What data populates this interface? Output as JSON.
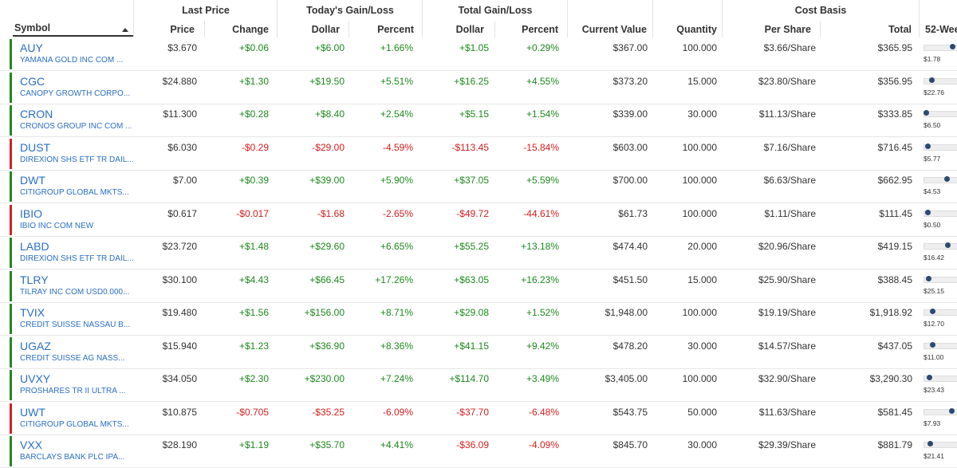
{
  "header": {
    "symbol": "Symbol",
    "groups": {
      "last_price": "Last Price",
      "todays_gain_loss": "Today's Gain/Loss",
      "total_gain_loss": "Total Gain/Loss",
      "cost_basis": "Cost Basis",
      "week52": "52-Wee"
    },
    "columns": {
      "price": "Price",
      "change": "Change",
      "today_dollar": "Dollar",
      "today_percent": "Percent",
      "total_dollar": "Dollar",
      "total_percent": "Percent",
      "current_value": "Current Value",
      "quantity": "Quantity",
      "per_share": "Per Share",
      "total": "Total"
    }
  },
  "colors": {
    "positive": "#1e8a1e",
    "negative": "#d62020",
    "link": "#2a6fc4"
  },
  "positions": [
    {
      "symbol": "AUY",
      "desc": "YAMANA GOLD INC COM ...",
      "trend": "up",
      "price": "$3.670",
      "change": "+$0.06",
      "today_dollar": "+$6.00",
      "today_percent": "+1.66%",
      "total_dollar": "+$1.05",
      "total_percent": "+0.29%",
      "current_value": "$367.00",
      "quantity": "100.000",
      "per_share": "$3.66/Share",
      "total": "$365.95",
      "week52_low": "$1.78",
      "range_pos": 0.95
    },
    {
      "symbol": "CGC",
      "desc": "CANOPY GROWTH CORPO...",
      "trend": "up",
      "price": "$24.880",
      "change": "+$1.30",
      "today_dollar": "+$19.50",
      "today_percent": "+5.51%",
      "total_dollar": "+$16.25",
      "total_percent": "+4.55%",
      "current_value": "$373.20",
      "quantity": "15.000",
      "per_share": "$23.80/Share",
      "total": "$356.95",
      "week52_low": "$22.76",
      "range_pos": 0.2
    },
    {
      "symbol": "CRON",
      "desc": "CRONOS GROUP INC COM ...",
      "trend": "up",
      "price": "$11.300",
      "change": "+$0.28",
      "today_dollar": "+$8.40",
      "today_percent": "+2.54%",
      "total_dollar": "+$5.15",
      "total_percent": "+1.54%",
      "current_value": "$339.00",
      "quantity": "30.000",
      "per_share": "$11.13/Share",
      "total": "$333.85",
      "week52_low": "$6.50",
      "range_pos": 0.0
    },
    {
      "symbol": "DUST",
      "desc": "DIREXION SHS ETF TR DAIL...",
      "trend": "down",
      "price": "$6.030",
      "change": "-$0.29",
      "today_dollar": "-$29.00",
      "today_percent": "-4.59%",
      "total_dollar": "-$113.45",
      "total_percent": "-15.84%",
      "current_value": "$603.00",
      "quantity": "100.000",
      "per_share": "$7.16/Share",
      "total": "$716.45",
      "week52_low": "$5.77",
      "range_pos": 0.05
    },
    {
      "symbol": "DWT",
      "desc": "CITIGROUP GLOBAL MKTS...",
      "trend": "up",
      "price": "$7.00",
      "change": "+$0.39",
      "today_dollar": "+$39.00",
      "today_percent": "+5.90%",
      "total_dollar": "+$37.05",
      "total_percent": "+5.59%",
      "current_value": "$700.00",
      "quantity": "100.000",
      "per_share": "$6.63/Share",
      "total": "$662.95",
      "week52_low": "$4.53",
      "range_pos": 0.75
    },
    {
      "symbol": "IBIO",
      "desc": "IBIO INC COM NEW",
      "trend": "down",
      "price": "$0.617",
      "change": "-$0.017",
      "today_dollar": "-$1.68",
      "today_percent": "-2.65%",
      "total_dollar": "-$49.72",
      "total_percent": "-44.61%",
      "current_value": "$61.73",
      "quantity": "100.000",
      "per_share": "$1.11/Share",
      "total": "$111.45",
      "week52_low": "$0.50",
      "range_pos": 0.05
    },
    {
      "symbol": "LABD",
      "desc": "DIREXION SHS ETF TR DAIL...",
      "trend": "up",
      "price": "$23.720",
      "change": "+$1.48",
      "today_dollar": "+$29.60",
      "today_percent": "+6.65%",
      "total_dollar": "+$55.25",
      "total_percent": "+13.18%",
      "current_value": "$474.40",
      "quantity": "20.000",
      "per_share": "$20.96/Share",
      "total": "$419.15",
      "week52_low": "$16.42",
      "range_pos": 0.78
    },
    {
      "symbol": "TLRY",
      "desc": "TILRAY INC COM USD0.000...",
      "trend": "up",
      "price": "$30.100",
      "change": "+$4.43",
      "today_dollar": "+$66.45",
      "today_percent": "+17.26%",
      "total_dollar": "+$63.05",
      "total_percent": "+16.23%",
      "current_value": "$451.50",
      "quantity": "15.000",
      "per_share": "$25.90/Share",
      "total": "$388.45",
      "week52_low": "$25.15",
      "range_pos": 0.08
    },
    {
      "symbol": "TVIX",
      "desc": "CREDIT SUISSE NASSAU B...",
      "trend": "up",
      "price": "$19.480",
      "change": "+$1.56",
      "today_dollar": "+$156.00",
      "today_percent": "+8.71%",
      "total_dollar": "+$29.08",
      "total_percent": "+1.52%",
      "current_value": "$1,948.00",
      "quantity": "100.000",
      "per_share": "$19.19/Share",
      "total": "$1,918.92",
      "week52_low": "$12.70",
      "range_pos": 0.22
    },
    {
      "symbol": "UGAZ",
      "desc": "CREDIT SUISSE AG NASS...",
      "trend": "up",
      "price": "$15.940",
      "change": "+$1.23",
      "today_dollar": "+$36.90",
      "today_percent": "+8.36%",
      "total_dollar": "+$41.15",
      "total_percent": "+9.42%",
      "current_value": "$478.20",
      "quantity": "30.000",
      "per_share": "$14.57/Share",
      "total": "$437.05",
      "week52_low": "$11.00",
      "range_pos": 0.22
    },
    {
      "symbol": "UVXY",
      "desc": "PROSHARES TR II ULTRA ...",
      "trend": "up",
      "price": "$34.050",
      "change": "+$2.30",
      "today_dollar": "+$230.00",
      "today_percent": "+7.24%",
      "total_dollar": "+$114.70",
      "total_percent": "+3.49%",
      "current_value": "$3,405.00",
      "quantity": "100.000",
      "per_share": "$32.90/Share",
      "total": "$3,290.30",
      "week52_low": "$23.43",
      "range_pos": 0.12
    },
    {
      "symbol": "UWT",
      "desc": "CITIGROUP GLOBAL MKTS...",
      "trend": "down",
      "price": "$10.875",
      "change": "-$0.705",
      "today_dollar": "-$35.25",
      "today_percent": "-6.09%",
      "total_dollar": "-$37.70",
      "total_percent": "-6.48%",
      "current_value": "$543.75",
      "quantity": "50.000",
      "per_share": "$11.63/Share",
      "total": "$581.45",
      "week52_low": "$7.93",
      "range_pos": 0.9
    },
    {
      "symbol": "VXX",
      "desc": "BARCLAYS BANK PLC IPA...",
      "trend": "up",
      "price": "$28.190",
      "change": "+$1.19",
      "today_dollar": "+$35.70",
      "today_percent": "+4.41%",
      "total_dollar": "-$36.09",
      "total_percent": "-4.09%",
      "current_value": "$845.70",
      "quantity": "30.000",
      "per_share": "$29.39/Share",
      "total": "$881.79",
      "week52_low": "$21.41",
      "range_pos": 0.15
    }
  ]
}
